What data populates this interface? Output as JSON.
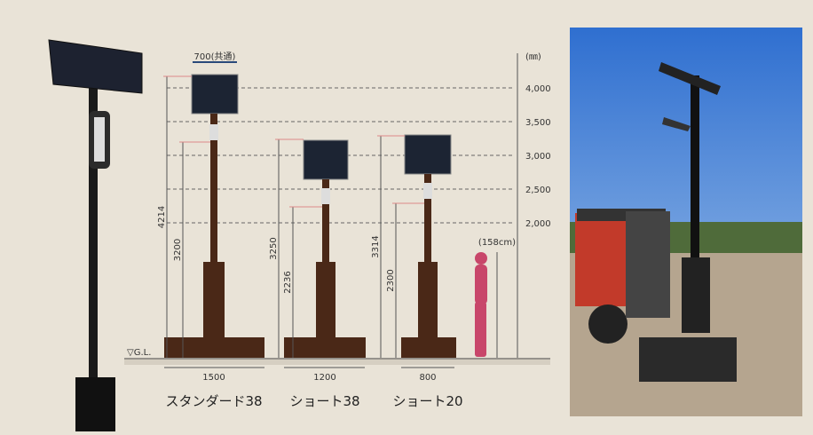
{
  "unit": "(㎜)",
  "scale_labels": [
    "4,000",
    "3,500",
    "3,000",
    "2,500",
    "2,000"
  ],
  "ground_label": "▽G.L.",
  "common_width": "700(共通)",
  "person_height": "(158cm)",
  "models": [
    {
      "name": "スタンダード38",
      "base_width": "1500",
      "total_height": "4214",
      "light_height": "3200"
    },
    {
      "name": "ショート38",
      "base_width": "1200",
      "total_height": "3250",
      "light_height": "2236"
    },
    {
      "name": "ショート20",
      "base_width": "800",
      "total_height": "3314",
      "light_height": "2300"
    }
  ]
}
